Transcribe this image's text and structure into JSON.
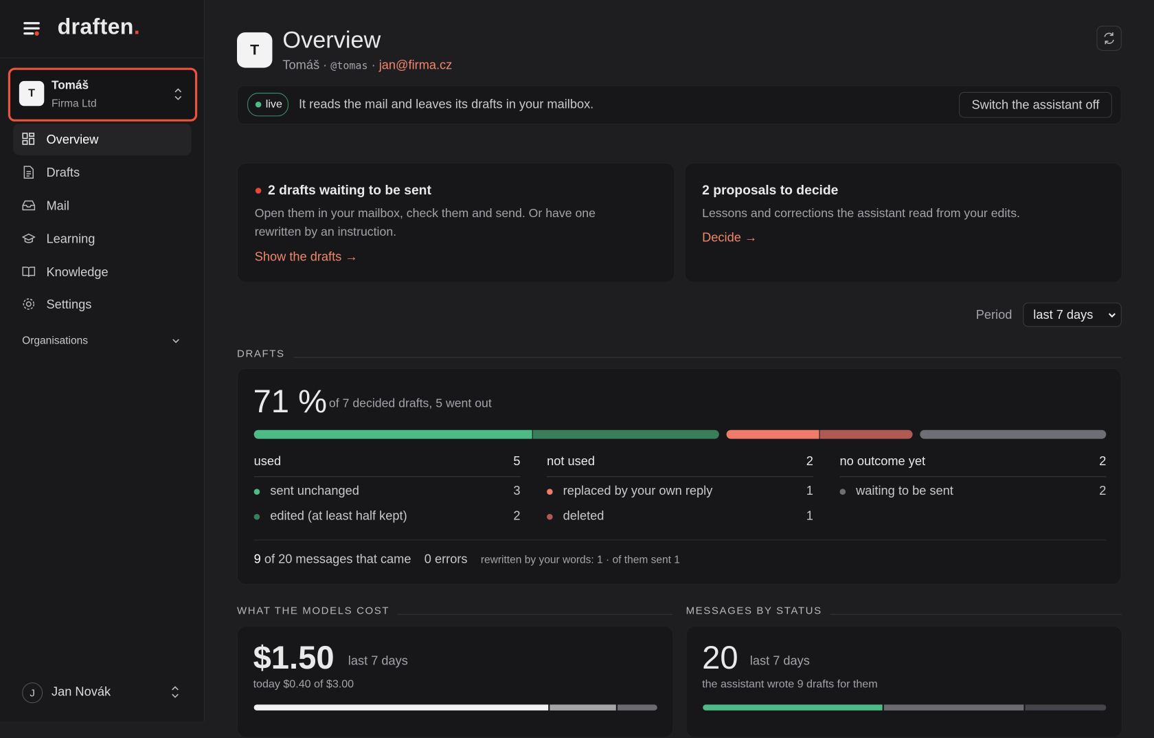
{
  "brand": {
    "name": "draften",
    "dot": "."
  },
  "account": {
    "initial": "T",
    "name": "Tomáš",
    "organisation": "Firma Ltd"
  },
  "nav": [
    "Overview",
    "Drafts",
    "Mail",
    "Learning",
    "Knowledge",
    "Settings"
  ],
  "organisations": "Organisations",
  "user": {
    "initial": "J",
    "name": "Jan Novák"
  },
  "header": {
    "initial": "T",
    "title": "Overview",
    "name": "Tomáš",
    "separator": "·",
    "handle": "@tomas",
    "email": "jan@firma.cz"
  },
  "status": {
    "badge": "live",
    "text": "It reads the mail and leaves its drafts in your mailbox.",
    "button": "Switch the assistant off"
  },
  "cards": [
    {
      "title": "2 drafts waiting to be sent",
      "text": "Open them in your mailbox, check them and send. Or have one rewritten by an instruction.",
      "link": "Show the drafts →"
    },
    {
      "title": "2 proposals to decide",
      "text": "Lessons and corrections the assistant read from your edits.",
      "link": "Decide →"
    }
  ],
  "period": {
    "label": "Period",
    "value": "last 7 days"
  },
  "drafts": {
    "section": "DRAFTS",
    "rate": "71 %",
    "summary": "of 7 decided drafts, 5 went out",
    "groups": [
      {
        "name": "used",
        "total": 5,
        "items": [
          {
            "label": "sent unchanged",
            "count": 3,
            "color": "#4dbb85"
          },
          {
            "label": "edited (at least half kept)",
            "count": 2,
            "color": "#3a7d5a"
          }
        ]
      },
      {
        "name": "not used",
        "total": 2,
        "items": [
          {
            "label": "replaced by your own reply",
            "count": 1,
            "color": "#ef7b6a"
          },
          {
            "label": "deleted",
            "count": 1,
            "color": "#b05a55"
          }
        ]
      },
      {
        "name": "no outcome yet",
        "total": 2,
        "items": [
          {
            "label": "waiting to be sent",
            "count": 2,
            "color": "#6e6e75"
          }
        ]
      }
    ],
    "footer": {
      "drafted": 9,
      "received": "of 20 messages that came",
      "errors": "0 errors",
      "rewritten": "rewritten by your words: 1 · of them sent 1"
    }
  },
  "cost": {
    "section": "WHAT THE MODELS COST",
    "amount": "$1.50",
    "period": "last 7 days",
    "today": "today $0.40 of $3.00"
  },
  "messages": {
    "section": "MESSAGES BY STATUS",
    "count": 20,
    "period": "last 7 days",
    "note": "the assistant wrote 9 drafts for them"
  }
}
